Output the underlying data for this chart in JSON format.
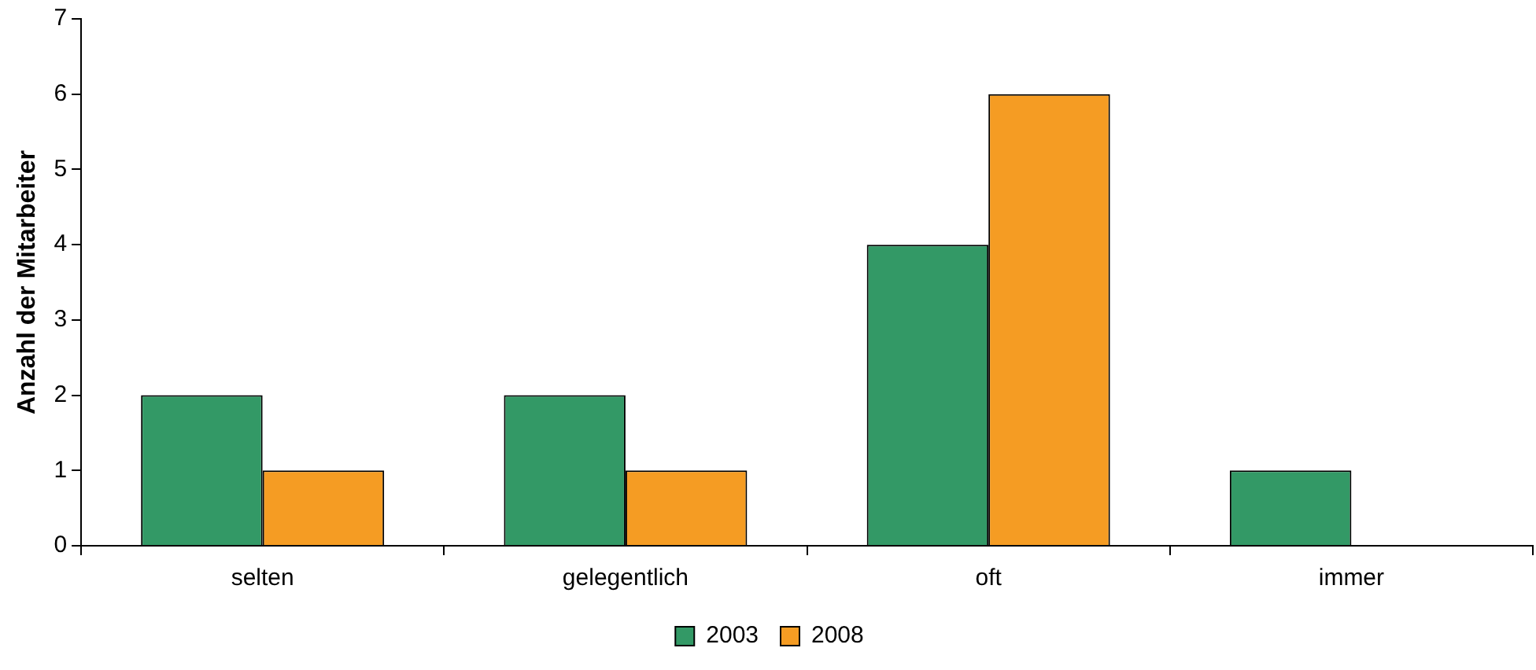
{
  "chart_data": {
    "type": "bar",
    "ylabel": "Anzahl der Mitarbeiter",
    "categories": [
      "selten",
      "gelegentlich",
      "oft",
      "immer"
    ],
    "series": [
      {
        "name": "2003",
        "color": "#339966",
        "values": [
          2,
          2,
          4,
          1
        ]
      },
      {
        "name": "2008",
        "color": "#f59c23",
        "values": [
          1,
          1,
          6,
          0
        ]
      }
    ],
    "ylim": [
      0,
      7
    ],
    "yticks": [
      0,
      1,
      2,
      3,
      4,
      5,
      6,
      7
    ],
    "grid": false,
    "legend": "bottom"
  }
}
